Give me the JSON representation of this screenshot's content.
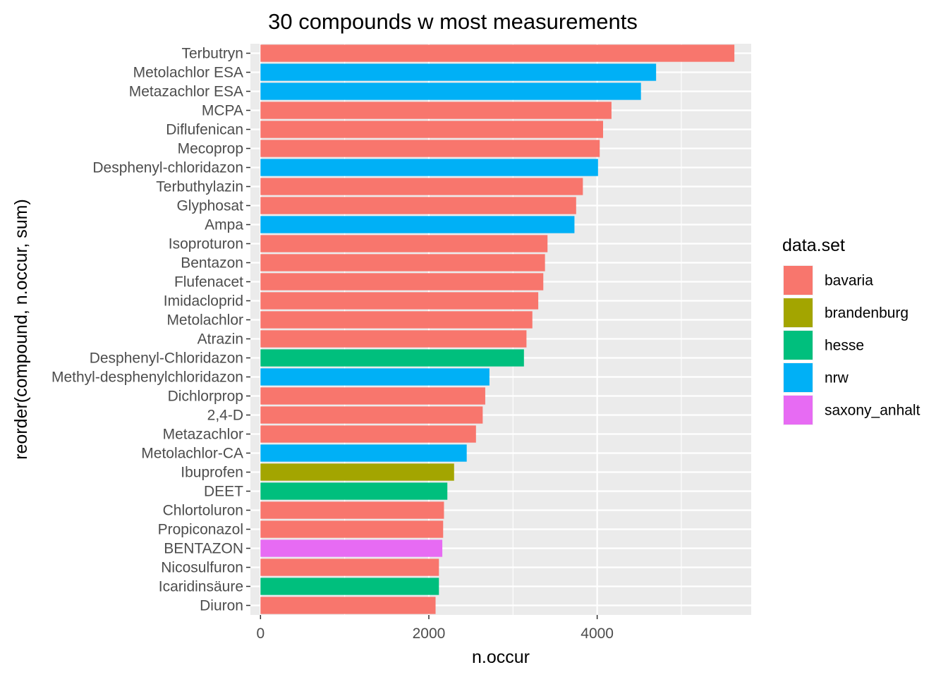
{
  "chart_data": {
    "type": "bar",
    "orientation": "horizontal",
    "title": "30 compounds w most measurements",
    "xlabel": "n.occur",
    "ylabel": "reorder(compound, n.occur, sum)",
    "xlim": [
      -120,
      5830
    ],
    "xticks": [
      "0",
      "2000",
      "4000"
    ],
    "grid": true,
    "legend": {
      "title": "data.set",
      "placement": "right",
      "entries": [
        {
          "name": "bavaria",
          "color": "#F8766D"
        },
        {
          "name": "brandenburg",
          "color": "#A3A500"
        },
        {
          "name": "hesse",
          "color": "#00BF7D"
        },
        {
          "name": "nrw",
          "color": "#00B0F6"
        },
        {
          "name": "saxony_anhalt",
          "color": "#E76BF3"
        }
      ]
    },
    "bars": [
      {
        "category": "Terbutryn",
        "value": 5630,
        "series": "bavaria"
      },
      {
        "category": "Metolachlor ESA",
        "value": 4700,
        "series": "nrw"
      },
      {
        "category": "Metazachlor ESA",
        "value": 4520,
        "series": "nrw"
      },
      {
        "category": "MCPA",
        "value": 4170,
        "series": "bavaria"
      },
      {
        "category": "Diflufenican",
        "value": 4070,
        "series": "bavaria"
      },
      {
        "category": "Mecoprop",
        "value": 4030,
        "series": "bavaria"
      },
      {
        "category": "Desphenyl-chloridazon",
        "value": 4010,
        "series": "nrw"
      },
      {
        "category": "Terbuthylazin",
        "value": 3830,
        "series": "bavaria"
      },
      {
        "category": "Glyphosat",
        "value": 3750,
        "series": "bavaria"
      },
      {
        "category": "Ampa",
        "value": 3730,
        "series": "nrw"
      },
      {
        "category": "Isoproturon",
        "value": 3410,
        "series": "bavaria"
      },
      {
        "category": "Bentazon",
        "value": 3380,
        "series": "bavaria"
      },
      {
        "category": "Flufenacet",
        "value": 3360,
        "series": "bavaria"
      },
      {
        "category": "Imidacloprid",
        "value": 3300,
        "series": "bavaria"
      },
      {
        "category": "Metolachlor",
        "value": 3230,
        "series": "bavaria"
      },
      {
        "category": "Atrazin",
        "value": 3160,
        "series": "bavaria"
      },
      {
        "category": "Desphenyl-Chloridazon",
        "value": 3130,
        "series": "hesse"
      },
      {
        "category": "Methyl-desphenylchloridazon",
        "value": 2720,
        "series": "nrw"
      },
      {
        "category": "Dichlorprop",
        "value": 2670,
        "series": "bavaria"
      },
      {
        "category": "2,4-D",
        "value": 2640,
        "series": "bavaria"
      },
      {
        "category": "Metazachlor",
        "value": 2560,
        "series": "bavaria"
      },
      {
        "category": "Metolachlor-CA",
        "value": 2450,
        "series": "nrw"
      },
      {
        "category": "Ibuprofen",
        "value": 2300,
        "series": "brandenburg"
      },
      {
        "category": "DEET",
        "value": 2220,
        "series": "hesse"
      },
      {
        "category": "Chlortoluron",
        "value": 2180,
        "series": "bavaria"
      },
      {
        "category": "Propiconazol",
        "value": 2170,
        "series": "bavaria"
      },
      {
        "category": "BENTAZON",
        "value": 2160,
        "series": "saxony_anhalt"
      },
      {
        "category": "Nicosulfuron",
        "value": 2120,
        "series": "bavaria"
      },
      {
        "category": "Icaridinsäure",
        "value": 2120,
        "series": "hesse"
      },
      {
        "category": "Diuron",
        "value": 2080,
        "series": "bavaria"
      }
    ]
  }
}
